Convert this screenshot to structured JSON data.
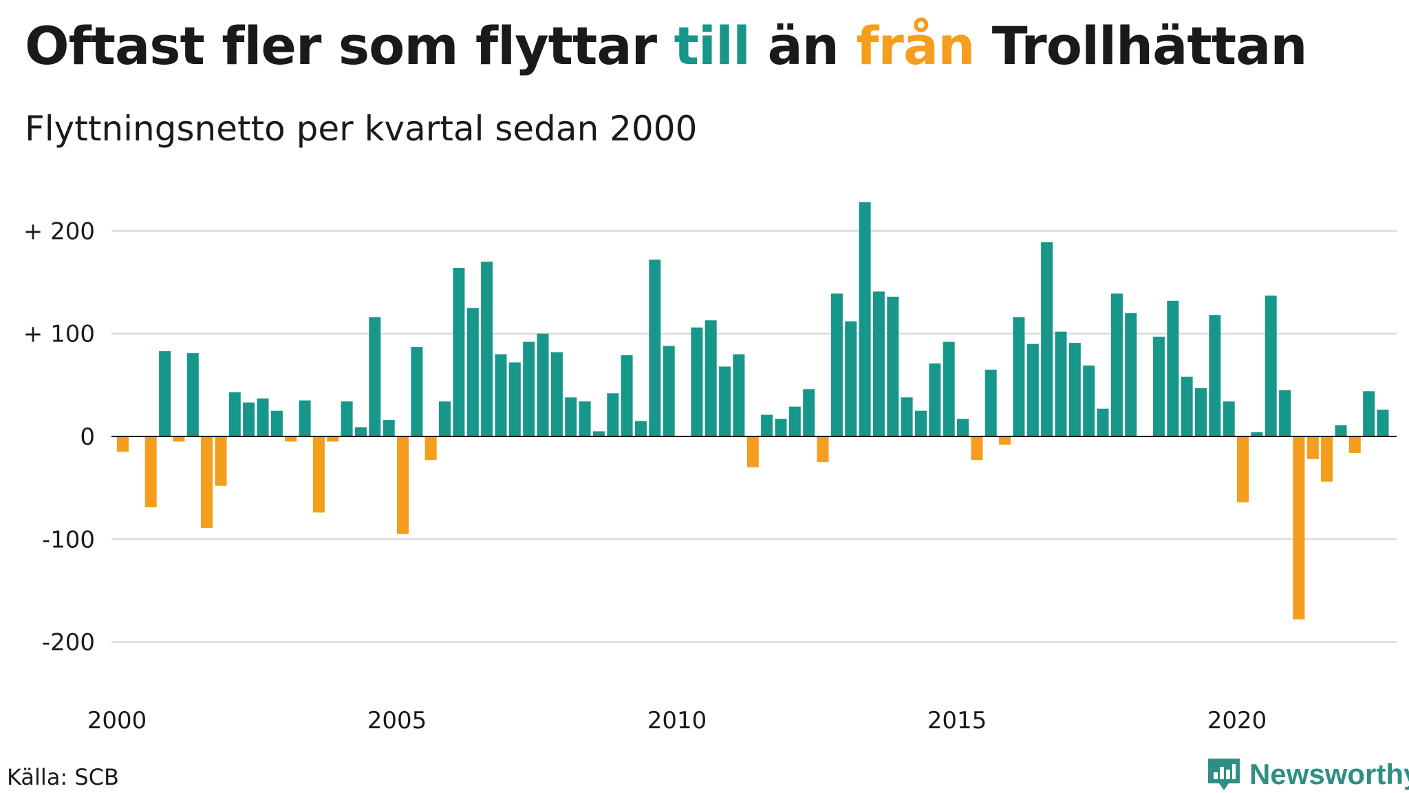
{
  "title": {
    "part1": "Oftast fler som flyttar ",
    "till": "till",
    "part2": " än ",
    "fran": "från",
    "part3": " Trollhättan"
  },
  "subtitle": "Flyttningsnetto per kvartal sedan 2000",
  "source": "Källa: SCB",
  "brand": "Newsworthy",
  "colors": {
    "positive": "#17968a",
    "negative": "#f59d1c",
    "grid": "#dedede",
    "brand": "#2f8f84"
  },
  "chart_data": {
    "type": "bar",
    "title": "Oftast fler som flyttar till än från Trollhättan",
    "subtitle": "Flyttningsnetto per kvartal sedan 2000",
    "xlabel": "",
    "ylabel": "",
    "ylim": [
      -240,
      240
    ],
    "y_ticks": [
      {
        "value": 200,
        "label": "+ 200"
      },
      {
        "value": 100,
        "label": "+ 100"
      },
      {
        "value": 0,
        "label": "0"
      },
      {
        "value": -100,
        "label": "-100"
      },
      {
        "value": -200,
        "label": "-200"
      }
    ],
    "x_ticks": [
      "2000",
      "2005",
      "2010",
      "2015",
      "2020"
    ],
    "grid": true,
    "start_year": 2000,
    "values": [
      -15,
      0,
      -69,
      83,
      -5,
      81,
      -89,
      -48,
      43,
      33,
      37,
      25,
      -5,
      35,
      -74,
      -5,
      34,
      9,
      116,
      16,
      -95,
      87,
      -23,
      34,
      164,
      125,
      170,
      80,
      72,
      92,
      100,
      82,
      38,
      34,
      5,
      42,
      79,
      15,
      172,
      88,
      0,
      106,
      113,
      68,
      80,
      -30,
      21,
      17,
      29,
      46,
      -25,
      139,
      112,
      228,
      141,
      136,
      38,
      25,
      71,
      92,
      17,
      -23,
      65,
      -8,
      116,
      90,
      189,
      102,
      91,
      69,
      27,
      139,
      120,
      0,
      97,
      132,
      58,
      47,
      118,
      34,
      -64,
      4,
      137,
      45,
      -178,
      -22,
      -44,
      11,
      -16,
      44,
      26
    ]
  }
}
